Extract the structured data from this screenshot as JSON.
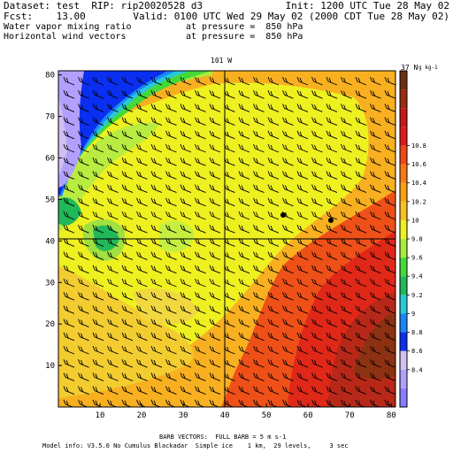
{
  "header": {
    "dataset": "Dataset: test  RIP: rip20020528 d3",
    "init": "Init: 1200 UTC Tue 28 May 02",
    "fcst": "Fcst:    13.00",
    "valid": "Valid: 0100 UTC Wed 29 May 02 (2000 CDT Tue 28 May 02)",
    "field1_name": "Water vapor mixing ratio",
    "field1_level": "at pressure =  850 hPa",
    "field2_name": "Horizontal wind vectors",
    "field2_level": "at pressure =  850 hPa"
  },
  "map": {
    "top_label": "101 W",
    "right_label": "37 N",
    "colorbar_exponent": "g kg-1",
    "x_ticks": [
      "10",
      "20",
      "30",
      "40",
      "50",
      "60",
      "70",
      "80"
    ],
    "y_ticks": [
      "10",
      "20",
      "30",
      "40",
      "50",
      "60",
      "70",
      "80"
    ],
    "colorbar_labels": [
      "8.4",
      "8.6",
      "8.8",
      "9",
      "9.2",
      "9.4",
      "9.6",
      "9.8",
      "10",
      "10.2",
      "10.4",
      "10.6",
      "10.8"
    ],
    "colorbar_colors": [
      "#8a7cff",
      "#b2a0ff",
      "#d2bff0",
      "#0a2ff0",
      "#1a86f8",
      "#28c8d8",
      "#20b858",
      "#44d838",
      "#a8ec40",
      "#eef020",
      "#f8c020",
      "#f8a010",
      "#f87818",
      "#f04818",
      "#e01818",
      "#c81818",
      "#9a2c12",
      "#6a3010"
    ]
  },
  "footer": {
    "barb_note": "BARB VECTORS:  FULL BARB = 5 m s-1",
    "model_info": "Model info: V3.5.0 No Cumulus Blackadar  Simple ice    1 km,  29 levels,     3 sec"
  }
}
